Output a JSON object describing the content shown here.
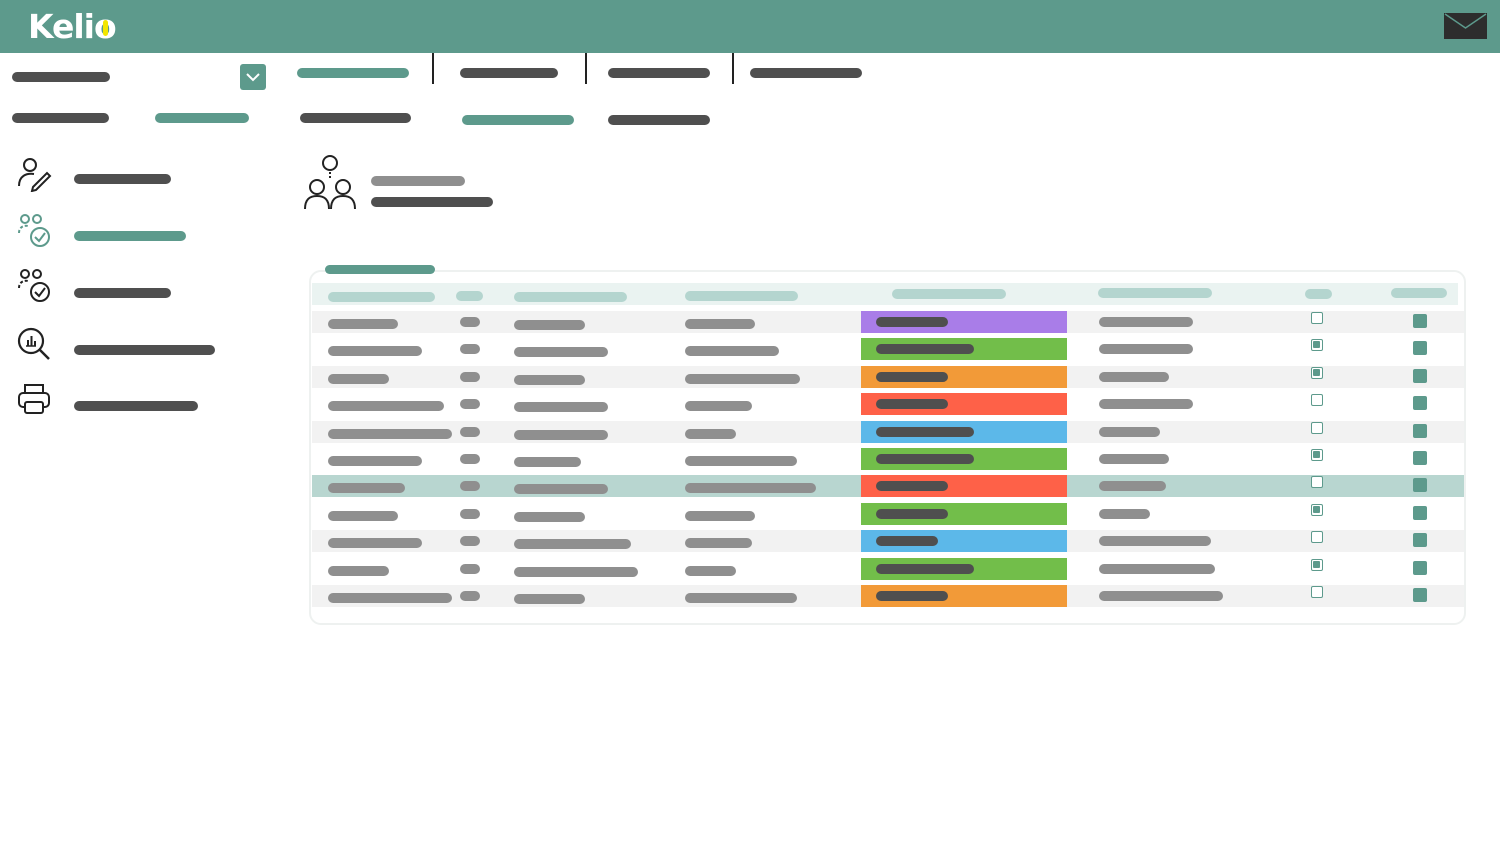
{
  "app": {
    "logo_text": "Kelio"
  },
  "colors": {
    "brand": "#5d9a8c",
    "status_purple": "#a97de8",
    "status_green": "#72be4a",
    "status_orange": "#f29a38",
    "status_red": "#fe6148",
    "status_blue": "#5cb8e9"
  },
  "icons": {
    "mail": "mail-icon",
    "dropdown": "chevron-down-icon",
    "sidebar": [
      "user-edit-icon",
      "users-check-icon",
      "users-check-icon",
      "search-chart-icon",
      "printer-icon"
    ],
    "group": "org-group-icon"
  },
  "table": {
    "rows": [
      {
        "status": "purple",
        "checked": false,
        "selected": false
      },
      {
        "status": "green",
        "checked": true,
        "selected": false
      },
      {
        "status": "orange",
        "checked": true,
        "selected": false
      },
      {
        "status": "red",
        "checked": false,
        "selected": false
      },
      {
        "status": "blue",
        "checked": false,
        "selected": false
      },
      {
        "status": "green",
        "checked": true,
        "selected": false
      },
      {
        "status": "red",
        "checked": false,
        "selected": true
      },
      {
        "status": "green",
        "checked": true,
        "selected": false
      },
      {
        "status": "blue",
        "checked": false,
        "selected": false
      },
      {
        "status": "green",
        "checked": true,
        "selected": false
      },
      {
        "status": "orange",
        "checked": false,
        "selected": false
      }
    ]
  }
}
